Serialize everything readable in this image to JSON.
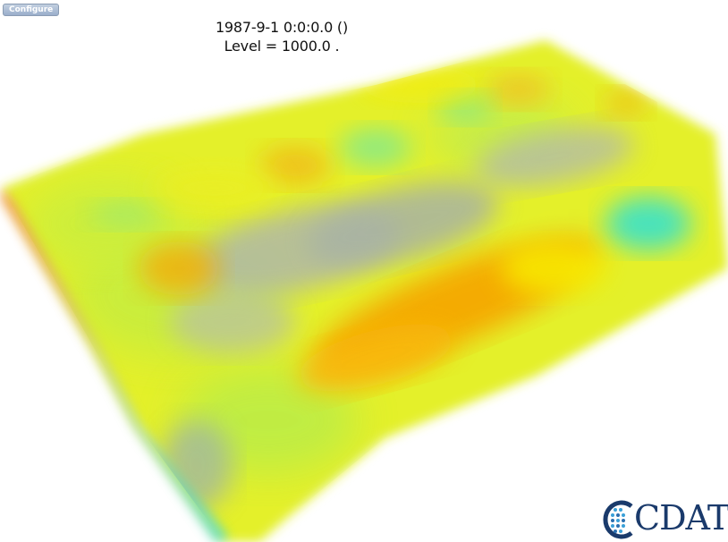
{
  "toolbar": {
    "configure_label": "Configure"
  },
  "plot_caption": {
    "time_line": "1987-9-1 0:0:0.0 ()",
    "level_line": "Level = 1000.0 ."
  },
  "logo": {
    "text": "CDAT",
    "accent_color": "#1a3a6b",
    "dot_color": "#3aa0d8"
  },
  "colors": {
    "background": "#ffffff",
    "field_base": "#e8f020",
    "field_warm": "#f5a000",
    "field_cool": "#40e0c0",
    "land_gray": "#a8b0a0"
  }
}
